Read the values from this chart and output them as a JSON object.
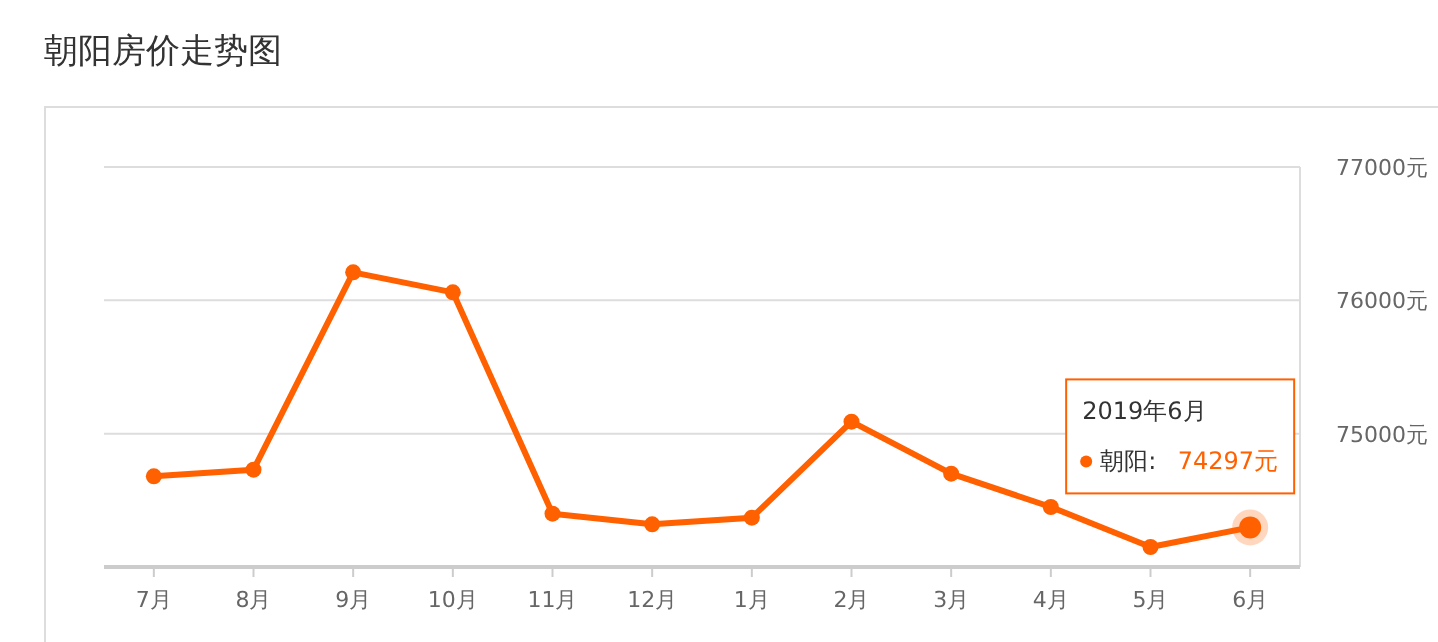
{
  "chart_data": {
    "type": "line",
    "title": "朝阳房价走势图",
    "categories": [
      "7月",
      "8月",
      "9月",
      "10月",
      "11月",
      "12月",
      "1月",
      "2月",
      "3月",
      "4月",
      "5月",
      "6月"
    ],
    "series": [
      {
        "name": "朝阳:",
        "color": "#ff6000",
        "values": [
          74680,
          74730,
          76210,
          76060,
          74400,
          74320,
          74370,
          75090,
          74700,
          74450,
          74150,
          74297
        ],
        "value_labels": [
          null,
          null,
          null,
          null,
          null,
          null,
          null,
          null,
          null,
          null,
          null,
          "74297元"
        ]
      }
    ],
    "annotations": [
      "2019年6月"
    ],
    "ylim": [
      74000,
      77000
    ],
    "yticks": [
      {
        "value": 75000,
        "label": "75000元"
      },
      {
        "value": 76000,
        "label": "76000元"
      },
      {
        "value": 77000,
        "label": "77000元"
      }
    ],
    "grid": "y",
    "marker": "circle",
    "line_style": "solid"
  }
}
